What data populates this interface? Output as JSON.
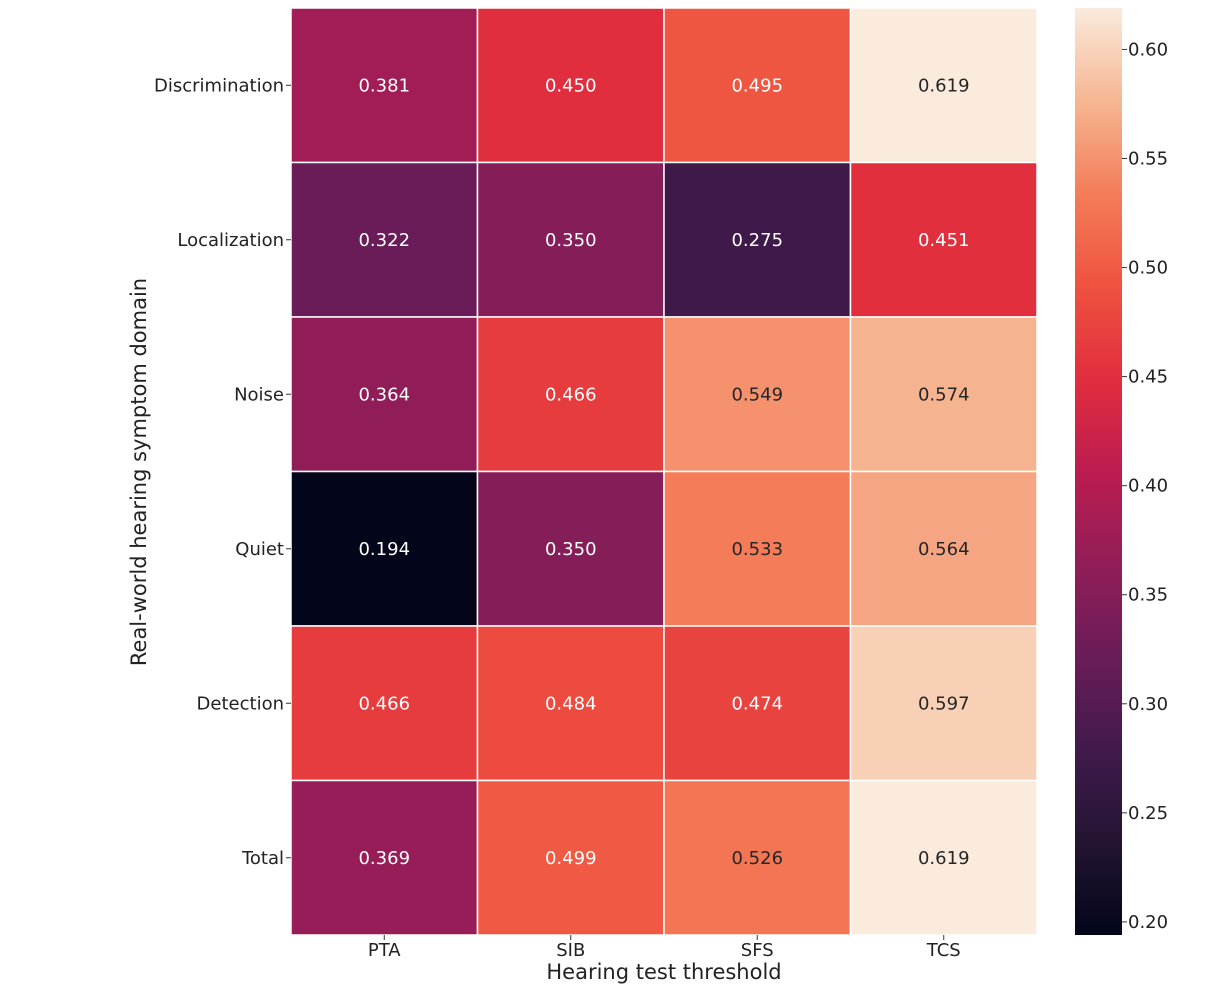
{
  "chart_data": {
    "type": "heatmap",
    "title": "",
    "xlabel": "Hearing test threshold",
    "ylabel": "Real-world hearing symptom domain",
    "x_categories": [
      "PTA",
      "SIB",
      "SFS",
      "TCS"
    ],
    "y_categories": [
      "Discrimination",
      "Localization",
      "Noise",
      "Quiet",
      "Detection",
      "Total"
    ],
    "values": [
      [
        0.381,
        0.45,
        0.495,
        0.619
      ],
      [
        0.322,
        0.35,
        0.275,
        0.451
      ],
      [
        0.364,
        0.466,
        0.549,
        0.574
      ],
      [
        0.194,
        0.35,
        0.533,
        0.564
      ],
      [
        0.466,
        0.484,
        0.474,
        0.597
      ],
      [
        0.369,
        0.499,
        0.526,
        0.619
      ]
    ],
    "value_labels": [
      [
        "0.381",
        "0.450",
        "0.495",
        "0.619"
      ],
      [
        "0.322",
        "0.350",
        "0.275",
        "0.451"
      ],
      [
        "0.364",
        "0.466",
        "0.549",
        "0.574"
      ],
      [
        "0.194",
        "0.350",
        "0.533",
        "0.564"
      ],
      [
        "0.466",
        "0.484",
        "0.474",
        "0.597"
      ],
      [
        "0.369",
        "0.499",
        "0.526",
        "0.619"
      ]
    ],
    "colorbar": {
      "range": [
        0.194,
        0.619
      ],
      "ticks": [
        0.2,
        0.25,
        0.3,
        0.35,
        0.4,
        0.45,
        0.5,
        0.55,
        0.6
      ],
      "tick_labels": [
        "0.20",
        "0.25",
        "0.30",
        "0.35",
        "0.40",
        "0.45",
        "0.50",
        "0.55",
        "0.60"
      ],
      "colormap": "rocket",
      "placement": "right"
    },
    "grid": false
  }
}
